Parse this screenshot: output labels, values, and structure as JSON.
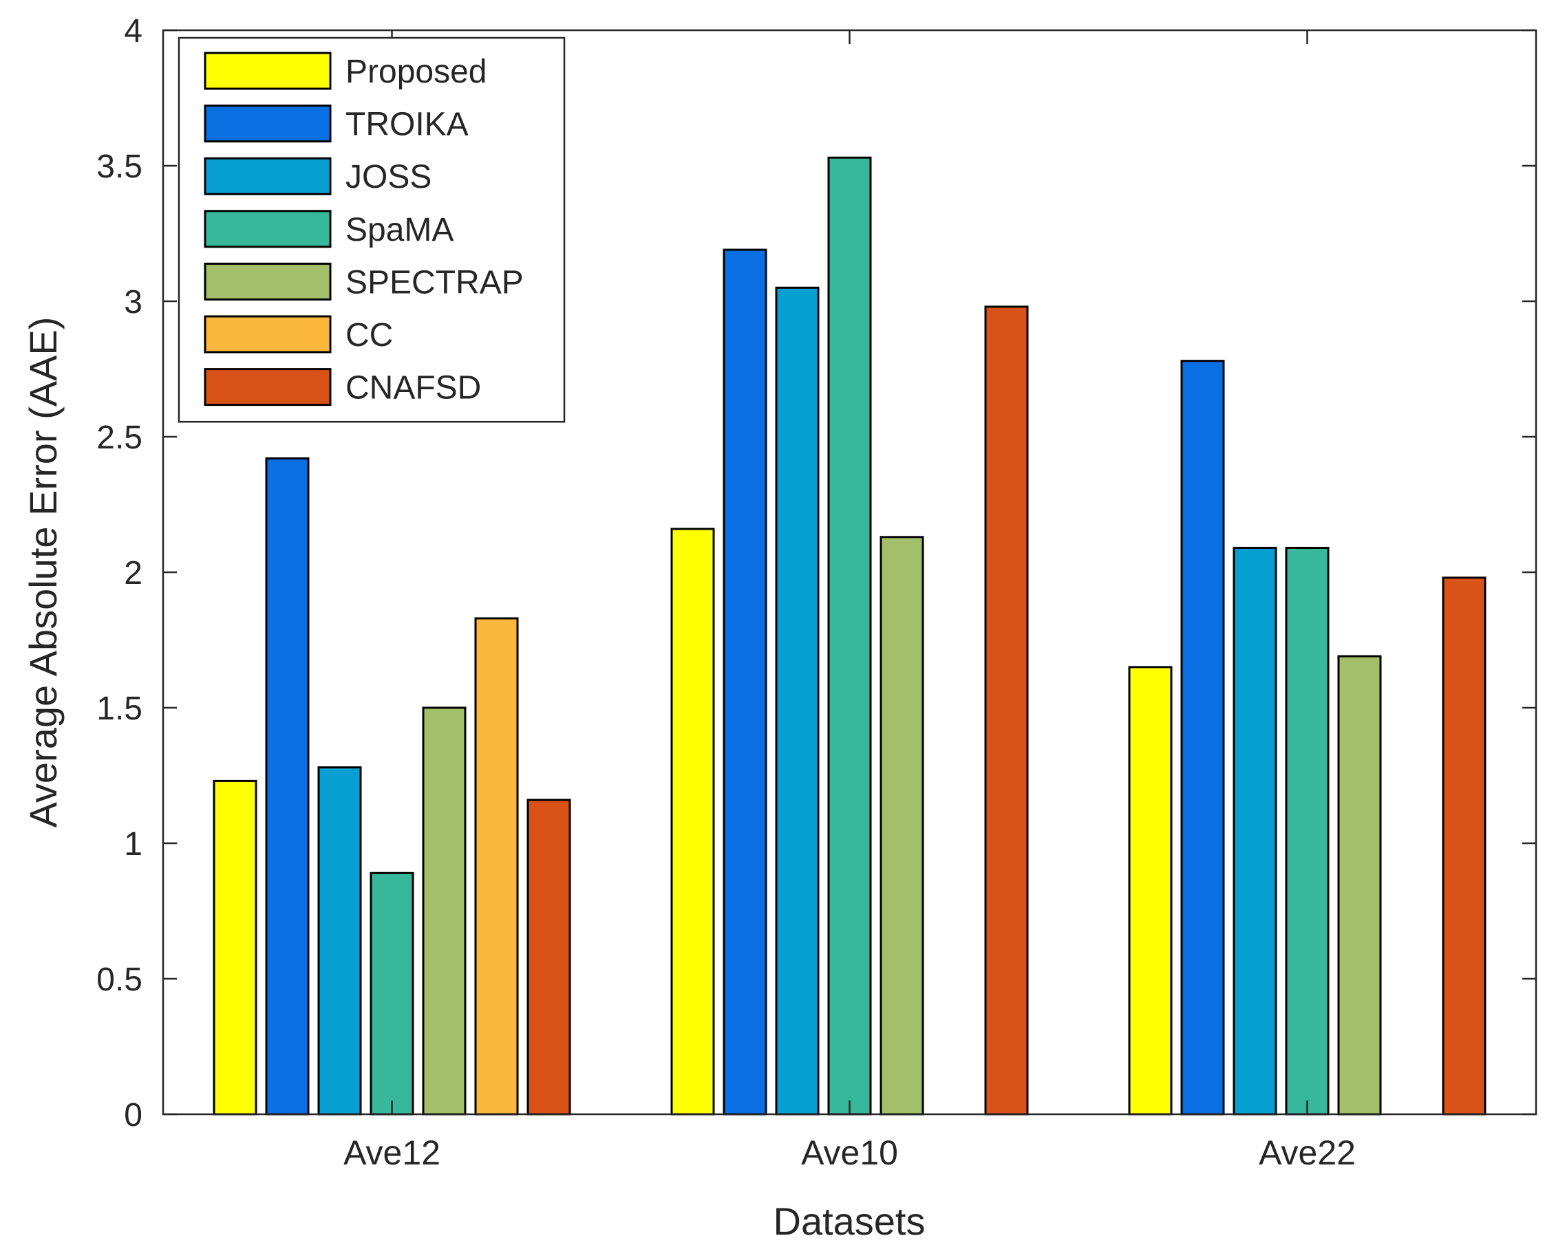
{
  "chart_data": {
    "type": "bar",
    "title": "",
    "xlabel": "Datasets",
    "ylabel": "Average Absolute Error (AAE)",
    "ylim": [
      0,
      4
    ],
    "yticks": [
      "0",
      "0.5",
      "1",
      "1.5",
      "2",
      "2.5",
      "3",
      "3.5",
      "4"
    ],
    "categories": [
      "Ave12",
      "Ave10",
      "Ave22"
    ],
    "legend_position": "top-left",
    "grid": false,
    "series": [
      {
        "name": "Proposed",
        "color": "#ffff00",
        "values": [
          1.23,
          2.16,
          1.65
        ]
      },
      {
        "name": "TROIKA",
        "color": "#0a6fe3",
        "values": [
          2.42,
          3.19,
          2.78
        ]
      },
      {
        "name": "JOSS",
        "color": "#089fd2",
        "values": [
          1.28,
          3.05,
          2.09
        ]
      },
      {
        "name": "SpaMA",
        "color": "#38b89b",
        "values": [
          0.89,
          3.53,
          2.09
        ]
      },
      {
        "name": "SPECTRAP",
        "color": "#a4bf6a",
        "values": [
          1.5,
          2.13,
          1.69
        ]
      },
      {
        "name": "CC",
        "color": "#fbb83b",
        "values": [
          1.83,
          0,
          0
        ]
      },
      {
        "name": "CNAFSD",
        "color": "#d95319",
        "values": [
          1.16,
          2.98,
          1.98
        ]
      }
    ]
  }
}
